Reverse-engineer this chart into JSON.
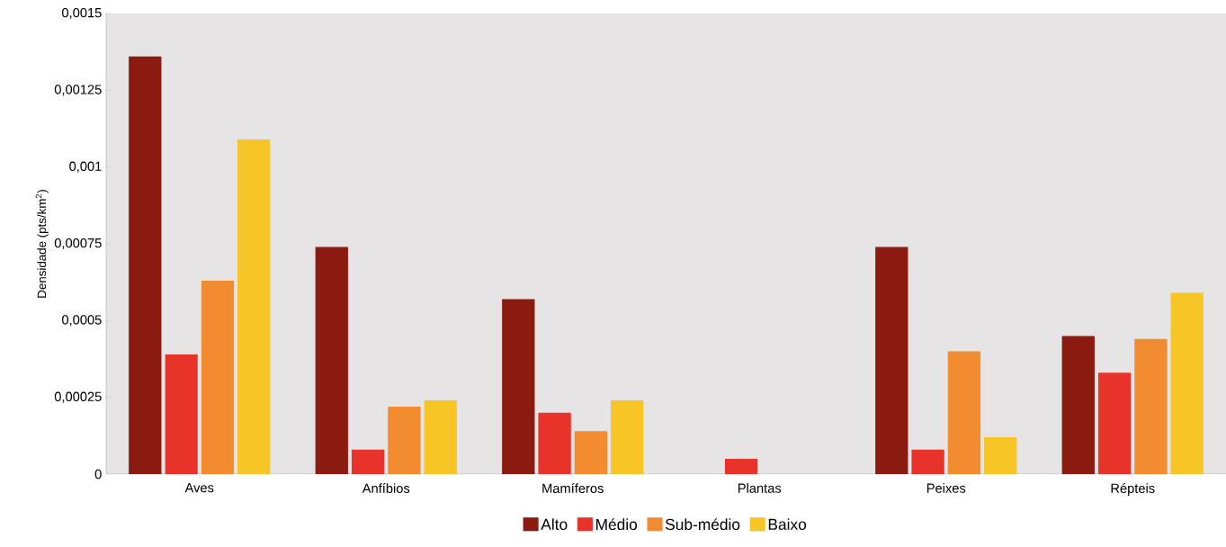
{
  "chart_data": {
    "type": "bar",
    "ylabel": "Densidade (pts/km$^{2}$)",
    "categories": [
      "Aves",
      "Anfíbios",
      "Mamíferos",
      "Plantas",
      "Peixes",
      "Répteis"
    ],
    "series": [
      {
        "name": "Alto",
        "color": "#8b1a10",
        "values": [
          0.00136,
          0.00074,
          0.00057,
          0,
          0.00074,
          0.00045
        ]
      },
      {
        "name": "Médio",
        "color": "#e8332a",
        "values": [
          0.00039,
          8e-05,
          0.0002,
          5e-05,
          8e-05,
          0.00033
        ]
      },
      {
        "name": "Sub-médio",
        "color": "#f28c30",
        "values": [
          0.00063,
          0.00022,
          0.00014,
          0,
          0.0004,
          0.00044
        ]
      },
      {
        "name": "Baixo",
        "color": "#f7c525",
        "values": [
          0.00109,
          0.00024,
          0.00024,
          0,
          0.00012,
          0.00059
        ]
      }
    ],
    "ylim": [
      0,
      0.0015
    ],
    "yticks": [
      {
        "value": 0,
        "label": "0"
      },
      {
        "value": 0.00025,
        "label": "0,00025"
      },
      {
        "value": 0.0005,
        "label": "0,0005"
      },
      {
        "value": 0.00075,
        "label": "0,00075"
      },
      {
        "value": 0.001,
        "label": "0,001"
      },
      {
        "value": 0.00125,
        "label": "0,00125"
      },
      {
        "value": 0.0015,
        "label": "0,0015"
      }
    ],
    "grid": false,
    "legend": "bottom"
  }
}
